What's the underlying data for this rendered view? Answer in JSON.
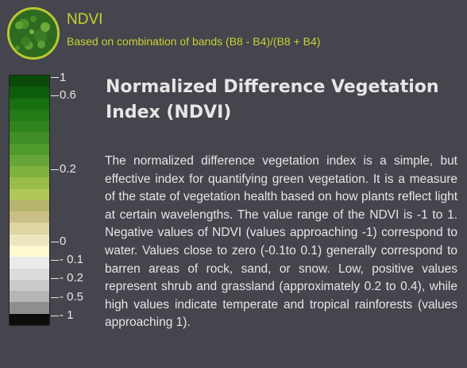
{
  "layer": {
    "title": "NDVI",
    "subtitle": "Based on combination of bands (B8 - B4)/(B8 + B4)"
  },
  "legend": {
    "colors": [
      "#0a4a09",
      "#0d5e0c",
      "#16700f",
      "#237a17",
      "#2f841d",
      "#3f8e26",
      "#4f9a2c",
      "#67a538",
      "#7fb13f",
      "#99bd4a",
      "#b0c857",
      "#b4b46f",
      "#c9be84",
      "#ddd5a2",
      "#ece6c0",
      "#fffad0",
      "#ebebeb",
      "#dcdcdc",
      "#cacaca",
      "#b5b5b5",
      "#8e8e8e",
      "#0c0c0c"
    ],
    "labels": [
      {
        "text": "1"
      },
      {
        "text": "0.6"
      },
      {
        "text": "0.2"
      },
      {
        "text": "0"
      },
      {
        "text": "- 0.1"
      },
      {
        "text": "- 0.2"
      },
      {
        "text": "- 0.5"
      },
      {
        "text": "- 1"
      }
    ]
  },
  "info": {
    "heading": "Normalized Difference Vegetation Index (NDVI)",
    "description": "The normalized difference vegetation index is a simple, but effective index for quantifying green vegetation. It is a measure of the state of vegetation health based on how plants reflect light at certain wavelengths. The value range of the NDVI is -1 to 1. Negative values of NDVI (values approaching -1) correspond to water. Values close to zero (-0.1to 0.1) generally correspond to barren areas of rock, sand, or snow. Low, positive values represent shrub and grassland (approximately 0.2 to 0.4), while high values indicate temperate and tropical rainforests (values approaching 1)."
  }
}
